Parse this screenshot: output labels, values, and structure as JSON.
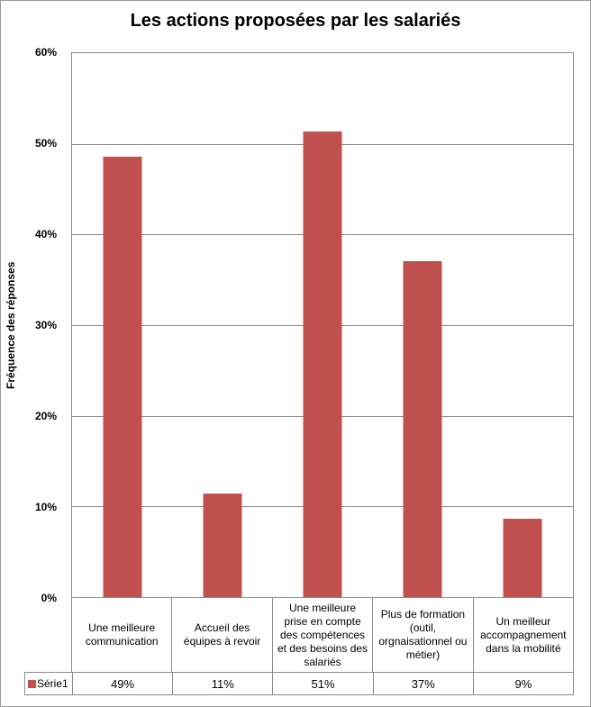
{
  "frame": {
    "background": "#ffffff",
    "border_color": "#9b9b9b"
  },
  "chart_data": {
    "type": "bar",
    "title": "Les actions proposées par les salariés",
    "xlabel": "",
    "ylabel": "Fréquence des réponses",
    "ylim": [
      0,
      60
    ],
    "ytick_step": 10,
    "ytick_labels": [
      "60%",
      "50%",
      "40%",
      "30%",
      "20%",
      "10%",
      "0%"
    ],
    "grid": true,
    "gridline_color": "#8c8c8c",
    "plot_border_color": "#8c8c8c",
    "categories": [
      "Une meilleure communication",
      "Accueil des équipes à revoir",
      "Une meilleure prise en compte des compétences et des besoins des salariés",
      "Plus de formation (outil, orgnaisationnel ou métier)",
      "Un meilleur accompagnement dans la mobilité"
    ],
    "series": [
      {
        "name": "Série1",
        "color": "#C0504D",
        "values": [
          48.6,
          11.4,
          51.4,
          37.1,
          8.6
        ],
        "display_values": [
          "49%",
          "11%",
          "51%",
          "37%",
          "9%"
        ]
      }
    ],
    "legend_position": "data-table-left",
    "data_table_shown": true
  }
}
